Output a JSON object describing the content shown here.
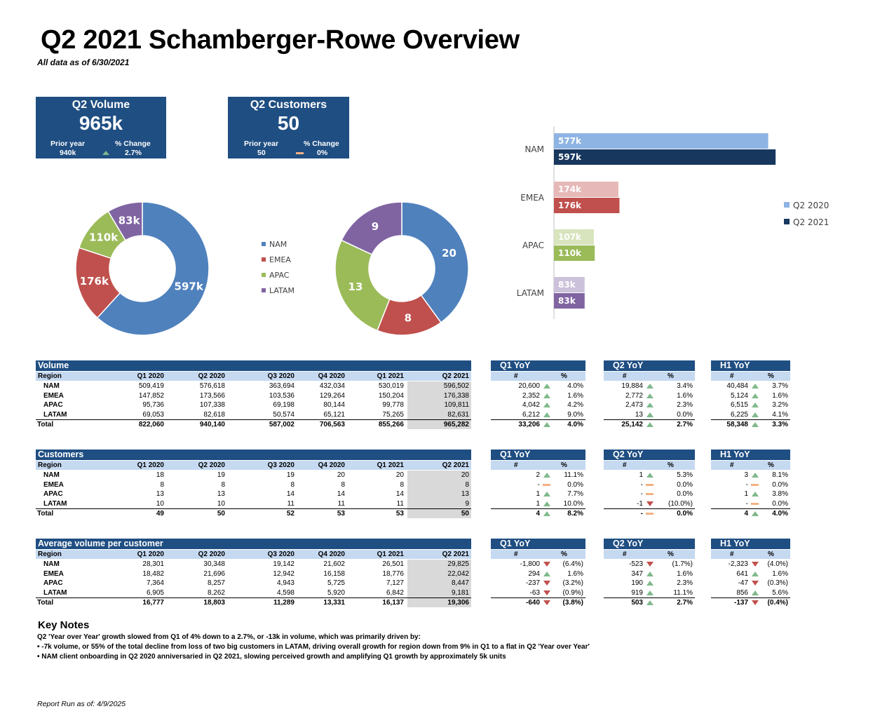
{
  "page": {
    "title": "Q2 2021 Schamberger-Rowe Overview",
    "as_of": "All data as of 6/30/2021",
    "report_run": "Report Run as of: 4/9/2025"
  },
  "colors": {
    "navy": "#1f4e82",
    "header_light": "#c5d9f1",
    "highlight_gray": "#d9d9d9",
    "up_green": "#7fb98a",
    "down_red": "#c0504d",
    "flat_orange": "#f4b183",
    "NAM": "#4f81bd",
    "EMEA": "#c0504d",
    "APAC": "#9bbb59",
    "LATAM": "#8064a2",
    "NAM_light": "#8eb4e3",
    "EMEA_light": "#e6b9b8",
    "APAC_light": "#d7e4bd",
    "LATAM_light": "#ccc1da",
    "NAM_dark": "#17375e"
  },
  "kpis": [
    {
      "title": "Q2 Volume",
      "value": "965k",
      "prior_label": "Prior year",
      "change_label": "% Change",
      "prior": "940k",
      "change": "2.7%",
      "trend": "up"
    },
    {
      "title": "Q2 Customers",
      "value": "50",
      "prior_label": "Prior year",
      "change_label": "% Change",
      "prior": "50",
      "change": "0%",
      "trend": "flat"
    }
  ],
  "chart_data": [
    {
      "type": "pie",
      "variant": "donut",
      "series_name": "Q2 2021 Volume",
      "categories": [
        "NAM",
        "EMEA",
        "APAC",
        "LATAM"
      ],
      "values": [
        596502,
        176338,
        109811,
        82631
      ],
      "labels": [
        "597k",
        "176k",
        "110k",
        "83k"
      ]
    },
    {
      "type": "pie",
      "variant": "donut",
      "series_name": "Q2 2021 Customers",
      "categories": [
        "NAM",
        "EMEA",
        "APAC",
        "LATAM"
      ],
      "values": [
        20,
        8,
        13,
        9
      ],
      "labels": [
        "20",
        "8",
        "13",
        "9"
      ],
      "legend": [
        "NAM",
        "EMEA",
        "APAC",
        "LATAM"
      ]
    },
    {
      "type": "bar",
      "orientation": "horizontal",
      "categories": [
        "NAM",
        "EMEA",
        "APAC",
        "LATAM"
      ],
      "series": [
        {
          "name": "Q2 2020",
          "values": [
            576618,
            173566,
            107338,
            82618
          ],
          "labels": [
            "577k",
            "174k",
            "107k",
            "83k"
          ]
        },
        {
          "name": "Q2 2021",
          "values": [
            596502,
            176338,
            109811,
            82631
          ],
          "labels": [
            "597k",
            "176k",
            "110k",
            "83k"
          ]
        }
      ],
      "legend_position": "right"
    }
  ],
  "sections": [
    {
      "title": "Volume",
      "columns": [
        "Region",
        "Q1 2020",
        "Q2 2020",
        "Q3 2020",
        "Q4 2020",
        "Q1 2021",
        "Q2 2021"
      ],
      "rows": [
        [
          "NAM",
          "509,419",
          "576,618",
          "363,694",
          "432,034",
          "530,019",
          "596,502"
        ],
        [
          "EMEA",
          "147,852",
          "173,566",
          "103,536",
          "129,264",
          "150,204",
          "176,338"
        ],
        [
          "APAC",
          "95,736",
          "107,338",
          "69,198",
          "80,144",
          "99,778",
          "109,811"
        ],
        [
          "LATAM",
          "69,053",
          "82,618",
          "50,574",
          "65,121",
          "75,265",
          "82,631"
        ],
        [
          "Total",
          "822,060",
          "940,140",
          "587,002",
          "706,563",
          "855,266",
          "965,282"
        ]
      ],
      "yoy": [
        {
          "title": "Q1 YoY",
          "cols": [
            "#",
            "%"
          ],
          "rows": [
            [
              "20,600",
              "4.0%",
              "up"
            ],
            [
              "2,352",
              "1.6%",
              "up"
            ],
            [
              "4,042",
              "4.2%",
              "up"
            ],
            [
              "6,212",
              "9.0%",
              "up"
            ],
            [
              "33,206",
              "4.0%",
              "up"
            ]
          ]
        },
        {
          "title": "Q2 YoY",
          "cols": [
            "#",
            "%"
          ],
          "rows": [
            [
              "19,884",
              "3.4%",
              "up"
            ],
            [
              "2,772",
              "1.6%",
              "up"
            ],
            [
              "2,473",
              "2.3%",
              "up"
            ],
            [
              "13",
              "0.0%",
              "up"
            ],
            [
              "25,142",
              "2.7%",
              "up"
            ]
          ]
        },
        {
          "title": "H1 YoY",
          "cols": [
            "#",
            "%"
          ],
          "rows": [
            [
              "40,484",
              "3.7%",
              "up"
            ],
            [
              "5,124",
              "1.6%",
              "up"
            ],
            [
              "6,515",
              "3.2%",
              "up"
            ],
            [
              "6,225",
              "4.1%",
              "up"
            ],
            [
              "58,348",
              "3.3%",
              "up"
            ]
          ]
        }
      ]
    },
    {
      "title": "Customers",
      "columns": [
        "Region",
        "Q1 2020",
        "Q2 2020",
        "Q3 2020",
        "Q4 2020",
        "Q1 2021",
        "Q2 2021"
      ],
      "rows": [
        [
          "NAM",
          "18",
          "19",
          "19",
          "20",
          "20",
          "20"
        ],
        [
          "EMEA",
          "8",
          "8",
          "8",
          "8",
          "8",
          "8"
        ],
        [
          "APAC",
          "13",
          "13",
          "14",
          "14",
          "14",
          "13"
        ],
        [
          "LATAM",
          "10",
          "10",
          "11",
          "11",
          "11",
          "9"
        ],
        [
          "Total",
          "49",
          "50",
          "52",
          "53",
          "53",
          "50"
        ]
      ],
      "yoy": [
        {
          "title": "Q1 YoY",
          "cols": [
            "#",
            "%"
          ],
          "rows": [
            [
              "2",
              "11.1%",
              "up"
            ],
            [
              "-",
              "0.0%",
              "flat"
            ],
            [
              "1",
              "7.7%",
              "up"
            ],
            [
              "1",
              "10.0%",
              "up"
            ],
            [
              "4",
              "8.2%",
              "up"
            ]
          ]
        },
        {
          "title": "Q2 YoY",
          "cols": [
            "#",
            "%"
          ],
          "rows": [
            [
              "1",
              "5.3%",
              "up"
            ],
            [
              "-",
              "0.0%",
              "flat"
            ],
            [
              "-",
              "0.0%",
              "flat"
            ],
            [
              "-1",
              "(10.0%)",
              "down"
            ],
            [
              "-",
              "0.0%",
              "flat"
            ]
          ]
        },
        {
          "title": "H1 YoY",
          "cols": [
            "#",
            "%"
          ],
          "rows": [
            [
              "3",
              "8.1%",
              "up"
            ],
            [
              "-",
              "0.0%",
              "flat"
            ],
            [
              "1",
              "3.8%",
              "up"
            ],
            [
              "-",
              "0.0%",
              "flat"
            ],
            [
              "4",
              "4.0%",
              "up"
            ]
          ]
        }
      ]
    },
    {
      "title": "Average volume per customer",
      "columns": [
        "Region",
        "Q1 2020",
        "Q2 2020",
        "Q3 2020",
        "Q4 2020",
        "Q1 2021",
        "Q2 2021"
      ],
      "rows": [
        [
          "NAM",
          "28,301",
          "30,348",
          "19,142",
          "21,602",
          "26,501",
          "29,825"
        ],
        [
          "EMEA",
          "18,482",
          "21,696",
          "12,942",
          "16,158",
          "18,776",
          "22,042"
        ],
        [
          "APAC",
          "7,364",
          "8,257",
          "4,943",
          "5,725",
          "7,127",
          "8,447"
        ],
        [
          "LATAM",
          "6,905",
          "8,262",
          "4,598",
          "5,920",
          "6,842",
          "9,181"
        ],
        [
          "Total",
          "16,777",
          "18,803",
          "11,289",
          "13,331",
          "16,137",
          "19,306"
        ]
      ],
      "yoy": [
        {
          "title": "Q1 YoY",
          "cols": [
            "#",
            "%"
          ],
          "rows": [
            [
              "-1,800",
              "(6.4%)",
              "down"
            ],
            [
              "294",
              "1.6%",
              "up"
            ],
            [
              "-237",
              "(3.2%)",
              "down"
            ],
            [
              "-63",
              "(0.9%)",
              "down"
            ],
            [
              "-640",
              "(3.8%)",
              "down"
            ]
          ]
        },
        {
          "title": "Q2 YoY",
          "cols": [
            "#",
            "%"
          ],
          "rows": [
            [
              "-523",
              "(1.7%)",
              "down"
            ],
            [
              "347",
              "1.6%",
              "up"
            ],
            [
              "190",
              "2.3%",
              "up"
            ],
            [
              "919",
              "11.1%",
              "up"
            ],
            [
              "503",
              "2.7%",
              "up"
            ]
          ]
        },
        {
          "title": "H1 YoY",
          "cols": [
            "#",
            "%"
          ],
          "rows": [
            [
              "-2,323",
              "(4.0%)",
              "down"
            ],
            [
              "641",
              "1.6%",
              "up"
            ],
            [
              "-47",
              "(0.3%)",
              "down"
            ],
            [
              "856",
              "5.6%",
              "up"
            ],
            [
              "-137",
              "(0.4%)",
              "down"
            ]
          ]
        }
      ]
    }
  ],
  "notes": {
    "title": "Key Notes",
    "lines": [
      "Q2 'Year over Year' growth slowed from Q1 of 4% down to a 2.7%, or -13k in volume, which was primarily driven by:",
      "• -7k volume, or 55% of the total decline from loss of two big customers in LATAM, driving overall growth for region down from 9% in Q1 to a flat in Q2 'Year over Year'",
      "• NAM client onboarding in Q2 2020 anniversaried in Q2 2021, slowing perceived growth and amplifying Q1 growth by approximately 5k units"
    ]
  }
}
